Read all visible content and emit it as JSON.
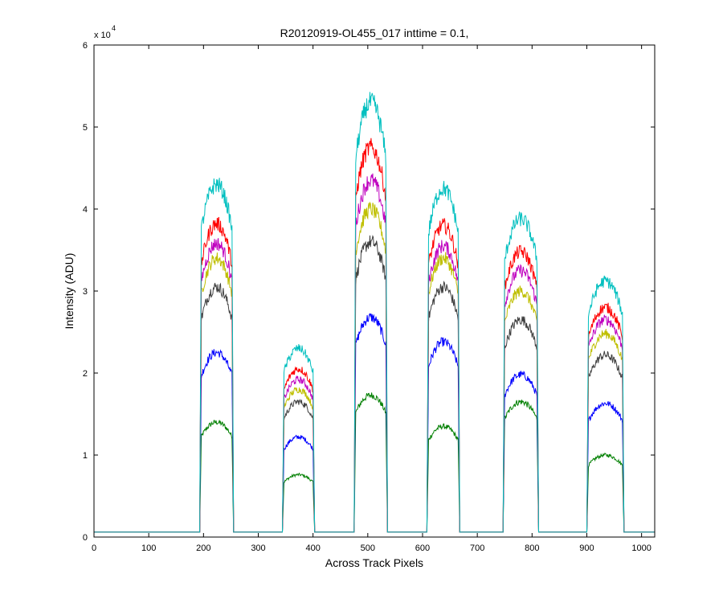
{
  "chart_data": {
    "type": "line",
    "title": "R20120919-OL455_017 inttime = 0.1,",
    "xlabel": "Across Track Pixels",
    "ylabel": "Intensity (ADU)",
    "y_multiplier_label": "x 10",
    "y_multiplier_exponent": "4",
    "xlim": [
      0,
      1024
    ],
    "ylim": [
      0,
      60000
    ],
    "xticks": [
      0,
      100,
      200,
      300,
      400,
      500,
      600,
      700,
      800,
      900,
      1000
    ],
    "xtick_labels": [
      "0",
      "100",
      "200",
      "300",
      "400",
      "500",
      "600",
      "700",
      "800",
      "900",
      "1000"
    ],
    "yticks": [
      0,
      10000,
      20000,
      30000,
      40000,
      50000,
      60000
    ],
    "ytick_labels": [
      "0",
      "1",
      "2",
      "3",
      "4",
      "5",
      "6"
    ],
    "grid": false,
    "legend": "none",
    "baseline": 600,
    "bands": [
      {
        "start": 193,
        "end": 255
      },
      {
        "start": 344,
        "end": 403
      },
      {
        "start": 475,
        "end": 536
      },
      {
        "start": 608,
        "end": 668
      },
      {
        "start": 747,
        "end": 812
      },
      {
        "start": 900,
        "end": 968
      }
    ],
    "series": [
      {
        "color": "#007f00",
        "peaks": [
          14000,
          7600,
          17300,
          13500,
          16500,
          10000
        ]
      },
      {
        "color": "#0000ff",
        "peaks": [
          22500,
          12200,
          26800,
          23800,
          19800,
          16300
        ]
      },
      {
        "color": "#3f3f3f",
        "peaks": [
          30500,
          16500,
          36000,
          30500,
          26500,
          22200
        ]
      },
      {
        "color": "#bfbf00",
        "peaks": [
          34000,
          18000,
          40000,
          34000,
          30000,
          24800
        ]
      },
      {
        "color": "#bf00bf",
        "peaks": [
          35800,
          19200,
          43500,
          35500,
          32500,
          26500
        ]
      },
      {
        "color": "#ff0000",
        "peaks": [
          38200,
          20500,
          47500,
          38000,
          34800,
          28000
        ]
      },
      {
        "color": "#00bfbf",
        "peaks": [
          43000,
          23000,
          53000,
          42500,
          38800,
          31200
        ]
      }
    ]
  }
}
